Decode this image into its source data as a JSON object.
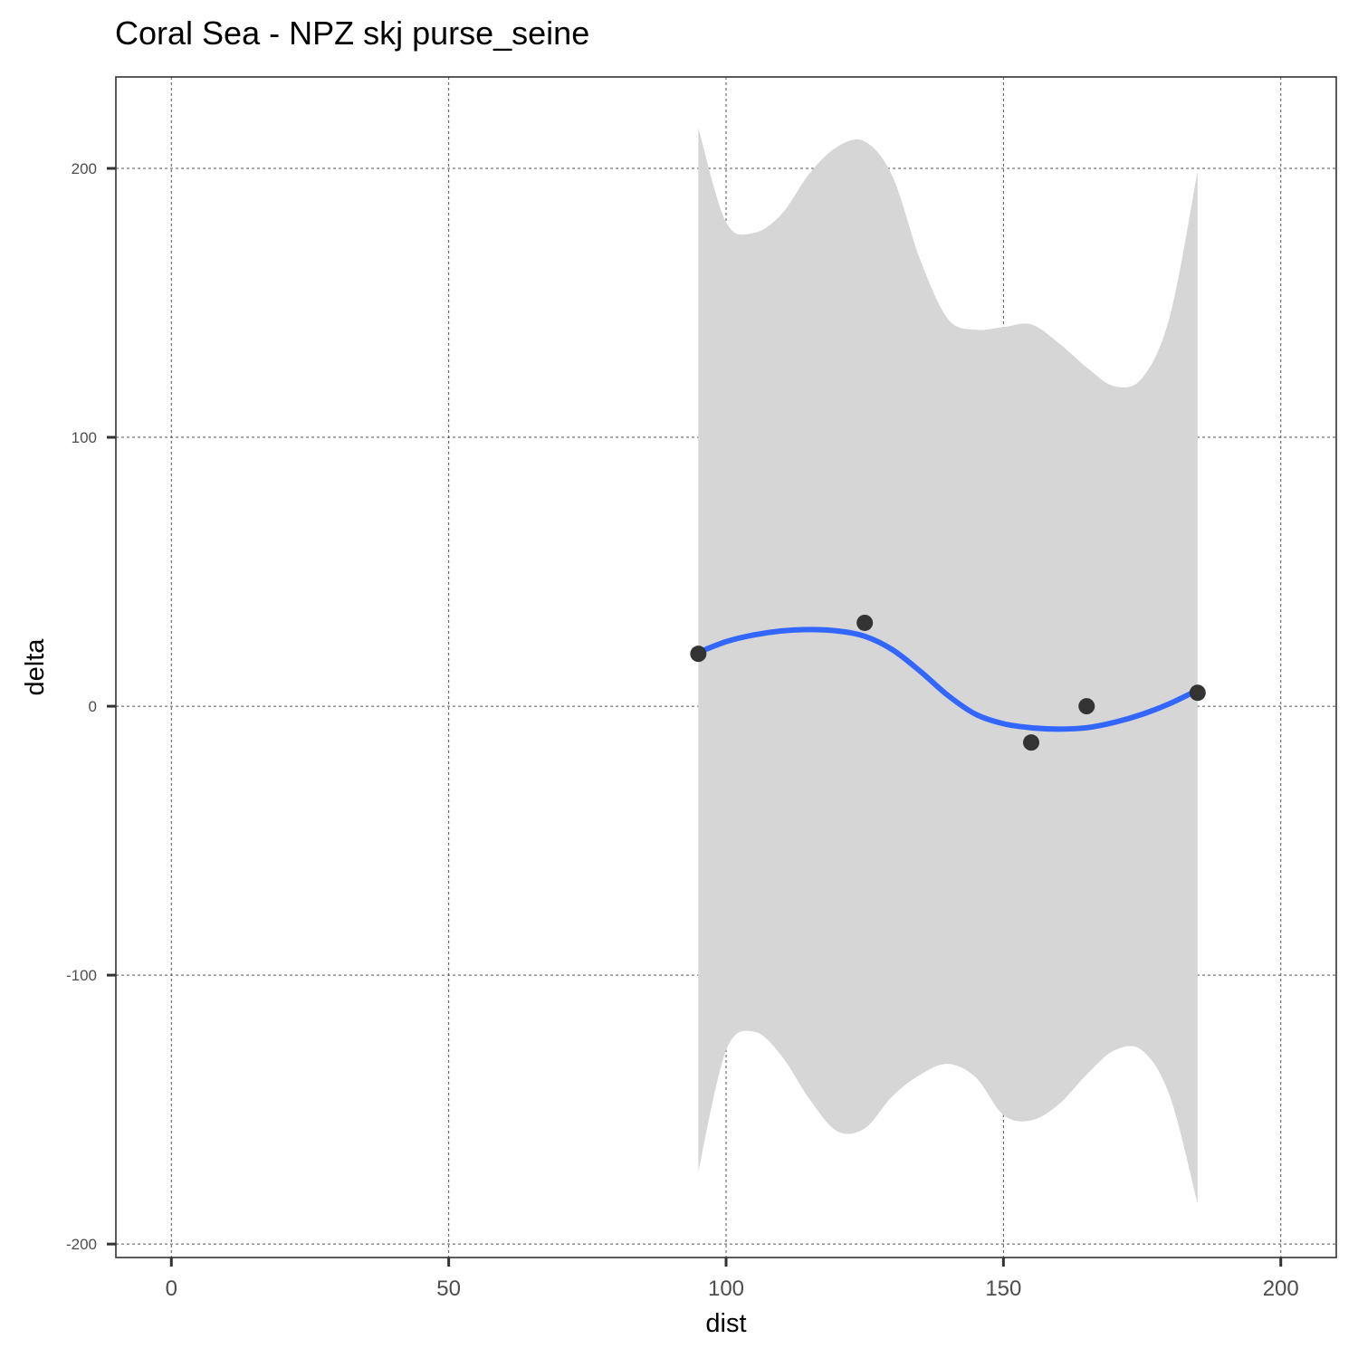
{
  "chart_data": {
    "type": "scatter",
    "title": "Coral Sea - NPZ skj purse_seine",
    "xlabel": "dist",
    "ylabel": "delta",
    "xlim": [
      -10,
      210
    ],
    "ylim": [
      -205,
      234
    ],
    "x_ticks": [
      0,
      50,
      100,
      150,
      200
    ],
    "y_ticks": [
      -200,
      -100,
      0,
      100,
      200
    ],
    "x_tick_labels": [
      "0",
      "50",
      "100",
      "150",
      "200"
    ],
    "y_tick_labels": [
      "-200",
      "-100",
      "0",
      "100",
      "200"
    ],
    "grid": true,
    "points": [
      {
        "x": 95,
        "y": 19.5
      },
      {
        "x": 125,
        "y": 31
      },
      {
        "x": 155,
        "y": -13.5
      },
      {
        "x": 165,
        "y": 0
      },
      {
        "x": 185,
        "y": 5
      }
    ],
    "smooth_line": [
      {
        "x": 95,
        "y": 20
      },
      {
        "x": 100,
        "y": 24
      },
      {
        "x": 105,
        "y": 26.5
      },
      {
        "x": 110,
        "y": 28
      },
      {
        "x": 115,
        "y": 28.5
      },
      {
        "x": 120,
        "y": 28
      },
      {
        "x": 125,
        "y": 26
      },
      {
        "x": 130,
        "y": 21
      },
      {
        "x": 135,
        "y": 13
      },
      {
        "x": 140,
        "y": 4
      },
      {
        "x": 145,
        "y": -3
      },
      {
        "x": 150,
        "y": -6.5
      },
      {
        "x": 155,
        "y": -8
      },
      {
        "x": 160,
        "y": -8.5
      },
      {
        "x": 165,
        "y": -8
      },
      {
        "x": 170,
        "y": -6
      },
      {
        "x": 175,
        "y": -3
      },
      {
        "x": 180,
        "y": 1
      },
      {
        "x": 185,
        "y": 6
      }
    ],
    "confidence_band": [
      {
        "x": 95,
        "upper": 215,
        "lower": -173
      },
      {
        "x": 100,
        "upper": 180,
        "lower": -128
      },
      {
        "x": 105,
        "upper": 176,
        "lower": -121
      },
      {
        "x": 110,
        "upper": 183,
        "lower": -130
      },
      {
        "x": 115,
        "upper": 198,
        "lower": -146
      },
      {
        "x": 120,
        "upper": 208,
        "lower": -158
      },
      {
        "x": 125,
        "upper": 210,
        "lower": -157
      },
      {
        "x": 130,
        "upper": 197,
        "lower": -145
      },
      {
        "x": 135,
        "upper": 166,
        "lower": -137
      },
      {
        "x": 140,
        "upper": 144,
        "lower": -133
      },
      {
        "x": 145,
        "upper": 140,
        "lower": -138
      },
      {
        "x": 150,
        "upper": 141,
        "lower": -152
      },
      {
        "x": 155,
        "upper": 142,
        "lower": -154
      },
      {
        "x": 160,
        "upper": 135,
        "lower": -148
      },
      {
        "x": 165,
        "upper": 126,
        "lower": -137
      },
      {
        "x": 170,
        "upper": 119,
        "lower": -128
      },
      {
        "x": 175,
        "upper": 122,
        "lower": -128
      },
      {
        "x": 180,
        "upper": 145,
        "lower": -145
      },
      {
        "x": 185,
        "upper": 199,
        "lower": -185
      }
    ],
    "colors": {
      "line": "#3366ff",
      "band": "#d6d6d6",
      "point": "#333333",
      "grid": "#555555",
      "axis": "#333333"
    }
  }
}
